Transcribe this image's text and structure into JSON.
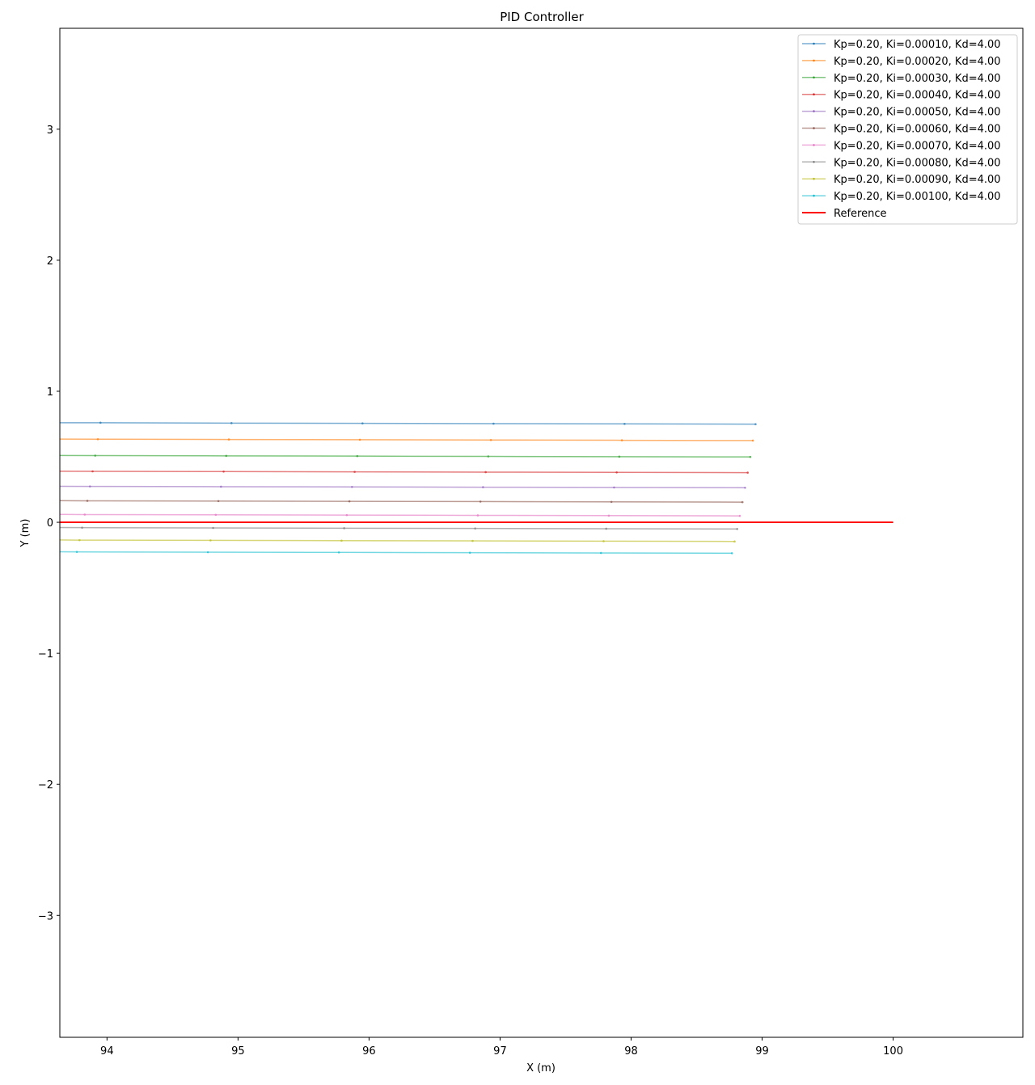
{
  "chart_data": {
    "type": "line",
    "title": "PID Controller",
    "xlabel": "X (m)",
    "ylabel": "Y (m)",
    "xlim": [
      93.64,
      100.99
    ],
    "ylim": [
      -3.93,
      3.77
    ],
    "xticks": [
      94,
      95,
      96,
      97,
      98,
      99,
      100
    ],
    "yticks": [
      -3,
      -2,
      -1,
      0,
      1,
      2,
      3
    ],
    "grid": false,
    "legend_position": "top-right",
    "series": [
      {
        "name": "Kp=0.20, Ki=0.00010, Kd=4.00",
        "color": "#1f77b4",
        "x": [
          93.64,
          93.95,
          94.95,
          95.95,
          96.95,
          97.95,
          98.95
        ],
        "y": [
          0.76,
          0.76,
          0.757,
          0.755,
          0.753,
          0.751,
          0.749
        ]
      },
      {
        "name": "Kp=0.20, Ki=0.00020, Kd=4.00",
        "color": "#ff7f0e",
        "x": [
          93.64,
          93.93,
          94.93,
          95.93,
          96.93,
          97.93,
          98.93
        ],
        "y": [
          0.635,
          0.634,
          0.632,
          0.63,
          0.628,
          0.626,
          0.624
        ]
      },
      {
        "name": "Kp=0.20, Ki=0.00030, Kd=4.00",
        "color": "#2ca02c",
        "x": [
          93.64,
          93.91,
          94.91,
          95.91,
          96.91,
          97.91,
          98.91
        ],
        "y": [
          0.51,
          0.509,
          0.507,
          0.505,
          0.503,
          0.501,
          0.499
        ]
      },
      {
        "name": "Kp=0.20, Ki=0.00040, Kd=4.00",
        "color": "#d62728",
        "x": [
          93.64,
          93.89,
          94.89,
          95.89,
          96.89,
          97.89,
          98.89
        ],
        "y": [
          0.39,
          0.389,
          0.387,
          0.385,
          0.383,
          0.381,
          0.379
        ]
      },
      {
        "name": "Kp=0.20, Ki=0.00050, Kd=4.00",
        "color": "#9467bd",
        "x": [
          93.64,
          93.87,
          94.87,
          95.87,
          96.87,
          97.87,
          98.87
        ],
        "y": [
          0.275,
          0.274,
          0.272,
          0.27,
          0.268,
          0.266,
          0.264
        ]
      },
      {
        "name": "Kp=0.20, Ki=0.00060, Kd=4.00",
        "color": "#8c564b",
        "x": [
          93.64,
          93.85,
          94.85,
          95.85,
          96.85,
          97.85,
          98.85
        ],
        "y": [
          0.165,
          0.164,
          0.162,
          0.16,
          0.158,
          0.156,
          0.154
        ]
      },
      {
        "name": "Kp=0.20, Ki=0.00070, Kd=4.00",
        "color": "#e377c2",
        "x": [
          93.64,
          93.83,
          94.83,
          95.83,
          96.83,
          97.83,
          98.83
        ],
        "y": [
          0.06,
          0.059,
          0.057,
          0.055,
          0.053,
          0.051,
          0.049
        ]
      },
      {
        "name": "Kp=0.20, Ki=0.00080, Kd=4.00",
        "color": "#7f7f7f",
        "x": [
          93.64,
          93.81,
          94.81,
          95.81,
          96.81,
          97.81,
          98.81
        ],
        "y": [
          -0.04,
          -0.041,
          -0.043,
          -0.045,
          -0.047,
          -0.049,
          -0.051
        ]
      },
      {
        "name": "Kp=0.20, Ki=0.00090, Kd=4.00",
        "color": "#bcbd22",
        "x": [
          93.64,
          93.79,
          94.79,
          95.79,
          96.79,
          97.79,
          98.79
        ],
        "y": [
          -0.135,
          -0.136,
          -0.138,
          -0.14,
          -0.142,
          -0.144,
          -0.146
        ]
      },
      {
        "name": "Kp=0.20, Ki=0.00100, Kd=4.00",
        "color": "#17becf",
        "x": [
          93.64,
          93.77,
          94.77,
          95.77,
          96.77,
          97.77,
          98.77
        ],
        "y": [
          -0.225,
          -0.226,
          -0.228,
          -0.23,
          -0.232,
          -0.234,
          -0.236
        ]
      }
    ],
    "reference": {
      "name": "Reference",
      "color": "#ff0000",
      "x": [
        93.64,
        100.0
      ],
      "y": [
        0,
        0
      ]
    }
  }
}
